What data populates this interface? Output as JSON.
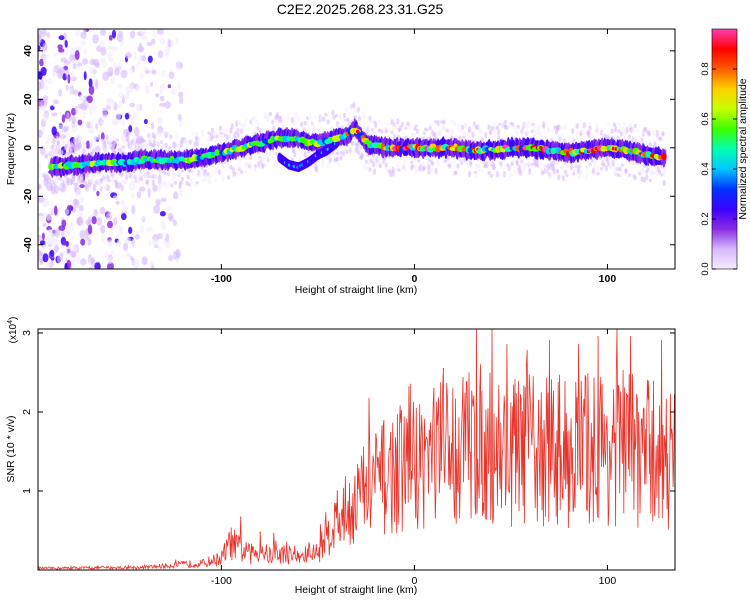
{
  "title": "C2E2.2025.268.23.31.G25",
  "colors": {
    "snr_line": "#e8342b",
    "axis": "#000000",
    "spectrogram_bg": "#ffffff",
    "colormap": [
      "#f4ecff",
      "#d7b8ff",
      "#8a2be2",
      "#3b00ff",
      "#0033ff",
      "#00c8ff",
      "#00ffb0",
      "#3cff00",
      "#c8ff00",
      "#ffd000",
      "#ff5a00",
      "#ff0000",
      "#ff3cb4"
    ]
  },
  "chart_data": [
    {
      "type": "heatmap",
      "name": "spectrogram",
      "xlabel": "Height of straight line (km)",
      "ylabel": "Frequency (Hz)",
      "xlim": [
        -195,
        135
      ],
      "ylim": [
        -50,
        49
      ],
      "xticks": [
        -100,
        0,
        100
      ],
      "yticks": [
        -40,
        -20,
        0,
        20,
        40
      ],
      "tick_labels": {
        "x": [
          "-100",
          "0",
          "100"
        ],
        "y": [
          "-40",
          "-20",
          "0",
          "20",
          "40"
        ]
      },
      "colorbar": {
        "label": "Normalized spectral amplitude",
        "range": [
          0.0,
          0.96
        ],
        "ticks": [
          0.0,
          0.2,
          0.4,
          0.6,
          0.8
        ],
        "tick_labels": [
          "0.0",
          "0.2",
          "0.4",
          "0.6",
          "0.8"
        ]
      },
      "ridge": {
        "description": "dominant frequency trace (Hz) vs height (km)",
        "x": [
          -188,
          -175,
          -160,
          -150,
          -140,
          -130,
          -120,
          -110,
          -100,
          -90,
          -80,
          -70,
          -60,
          -55,
          -50,
          -45,
          -40,
          -35,
          -31,
          -25,
          -15,
          0,
          10,
          20,
          30,
          40,
          50,
          60,
          70,
          80,
          90,
          100,
          110,
          120,
          130
        ],
        "y": [
          -8,
          -7,
          -6,
          -6,
          -5,
          -5,
          -5,
          -4,
          -2,
          0,
          2,
          4,
          4,
          2,
          2,
          3,
          4,
          5,
          8,
          2,
          0,
          0,
          0,
          0,
          -1,
          -1,
          0,
          0,
          -1,
          -2,
          -1,
          0,
          -1,
          -3,
          -4
        ]
      },
      "secondary_branch": {
        "x": [
          -70,
          -65,
          -60,
          -55,
          -50,
          -45,
          -40
        ],
        "y": [
          -4,
          -7,
          -8,
          -6,
          -3,
          -1,
          2
        ]
      },
      "noise_region_km": [
        -195,
        -120
      ]
    },
    {
      "type": "line",
      "name": "snr",
      "xlabel": "Height of straight line (km)",
      "ylabel": "SNR (10 * v/v)",
      "scale_label_base": "(x10",
      "scale_label_exp": "4",
      "scale_label_end": ")",
      "xlim": [
        -195,
        135
      ],
      "ylim": [
        0,
        3.05
      ],
      "xticks": [
        -100,
        0,
        100
      ],
      "yticks": [
        1,
        2,
        3
      ],
      "tick_labels": {
        "x": [
          "-100",
          "0",
          "100"
        ],
        "y": [
          "1",
          "2",
          "3"
        ]
      },
      "series": [
        {
          "name": "SNR",
          "profile_x": [
            -195,
            -140,
            -110,
            -100,
            -95,
            -90,
            -85,
            -80,
            -75,
            -70,
            -65,
            -60,
            -55,
            -50,
            -45,
            -40,
            -30,
            -20,
            -10,
            0,
            10,
            20,
            30,
            40,
            50,
            60,
            70,
            80,
            90,
            100,
            110,
            120,
            135
          ],
          "profile_y": [
            0.02,
            0.03,
            0.08,
            0.15,
            0.35,
            0.25,
            0.2,
            0.25,
            0.18,
            0.2,
            0.2,
            0.15,
            0.2,
            0.22,
            0.5,
            0.6,
            0.9,
            1.1,
            1.25,
            1.35,
            1.45,
            1.5,
            1.6,
            1.55,
            1.5,
            1.5,
            1.55,
            1.5,
            1.55,
            1.55,
            1.55,
            1.5,
            1.4
          ],
          "peaks": [
            {
              "x": -90,
              "y": 0.67
            },
            {
              "x": -80,
              "y": 0.48
            },
            {
              "x": -73,
              "y": 0.46
            },
            {
              "x": -62,
              "y": 0.3
            },
            {
              "x": -40,
              "y": 1.0
            },
            {
              "x": -25,
              "y": 1.3
            },
            {
              "x": 10,
              "y": 2.3
            },
            {
              "x": 15,
              "y": 2.55
            },
            {
              "x": 32,
              "y": 3.05
            },
            {
              "x": 48,
              "y": 2.85
            },
            {
              "x": 58,
              "y": 2.6
            },
            {
              "x": 70,
              "y": 2.9
            },
            {
              "x": 85,
              "y": 2.85
            },
            {
              "x": 95,
              "y": 2.95
            },
            {
              "x": 105,
              "y": 3.05
            },
            {
              "x": 112,
              "y": 2.95
            },
            {
              "x": 128,
              "y": 2.9
            }
          ]
        }
      ]
    }
  ]
}
